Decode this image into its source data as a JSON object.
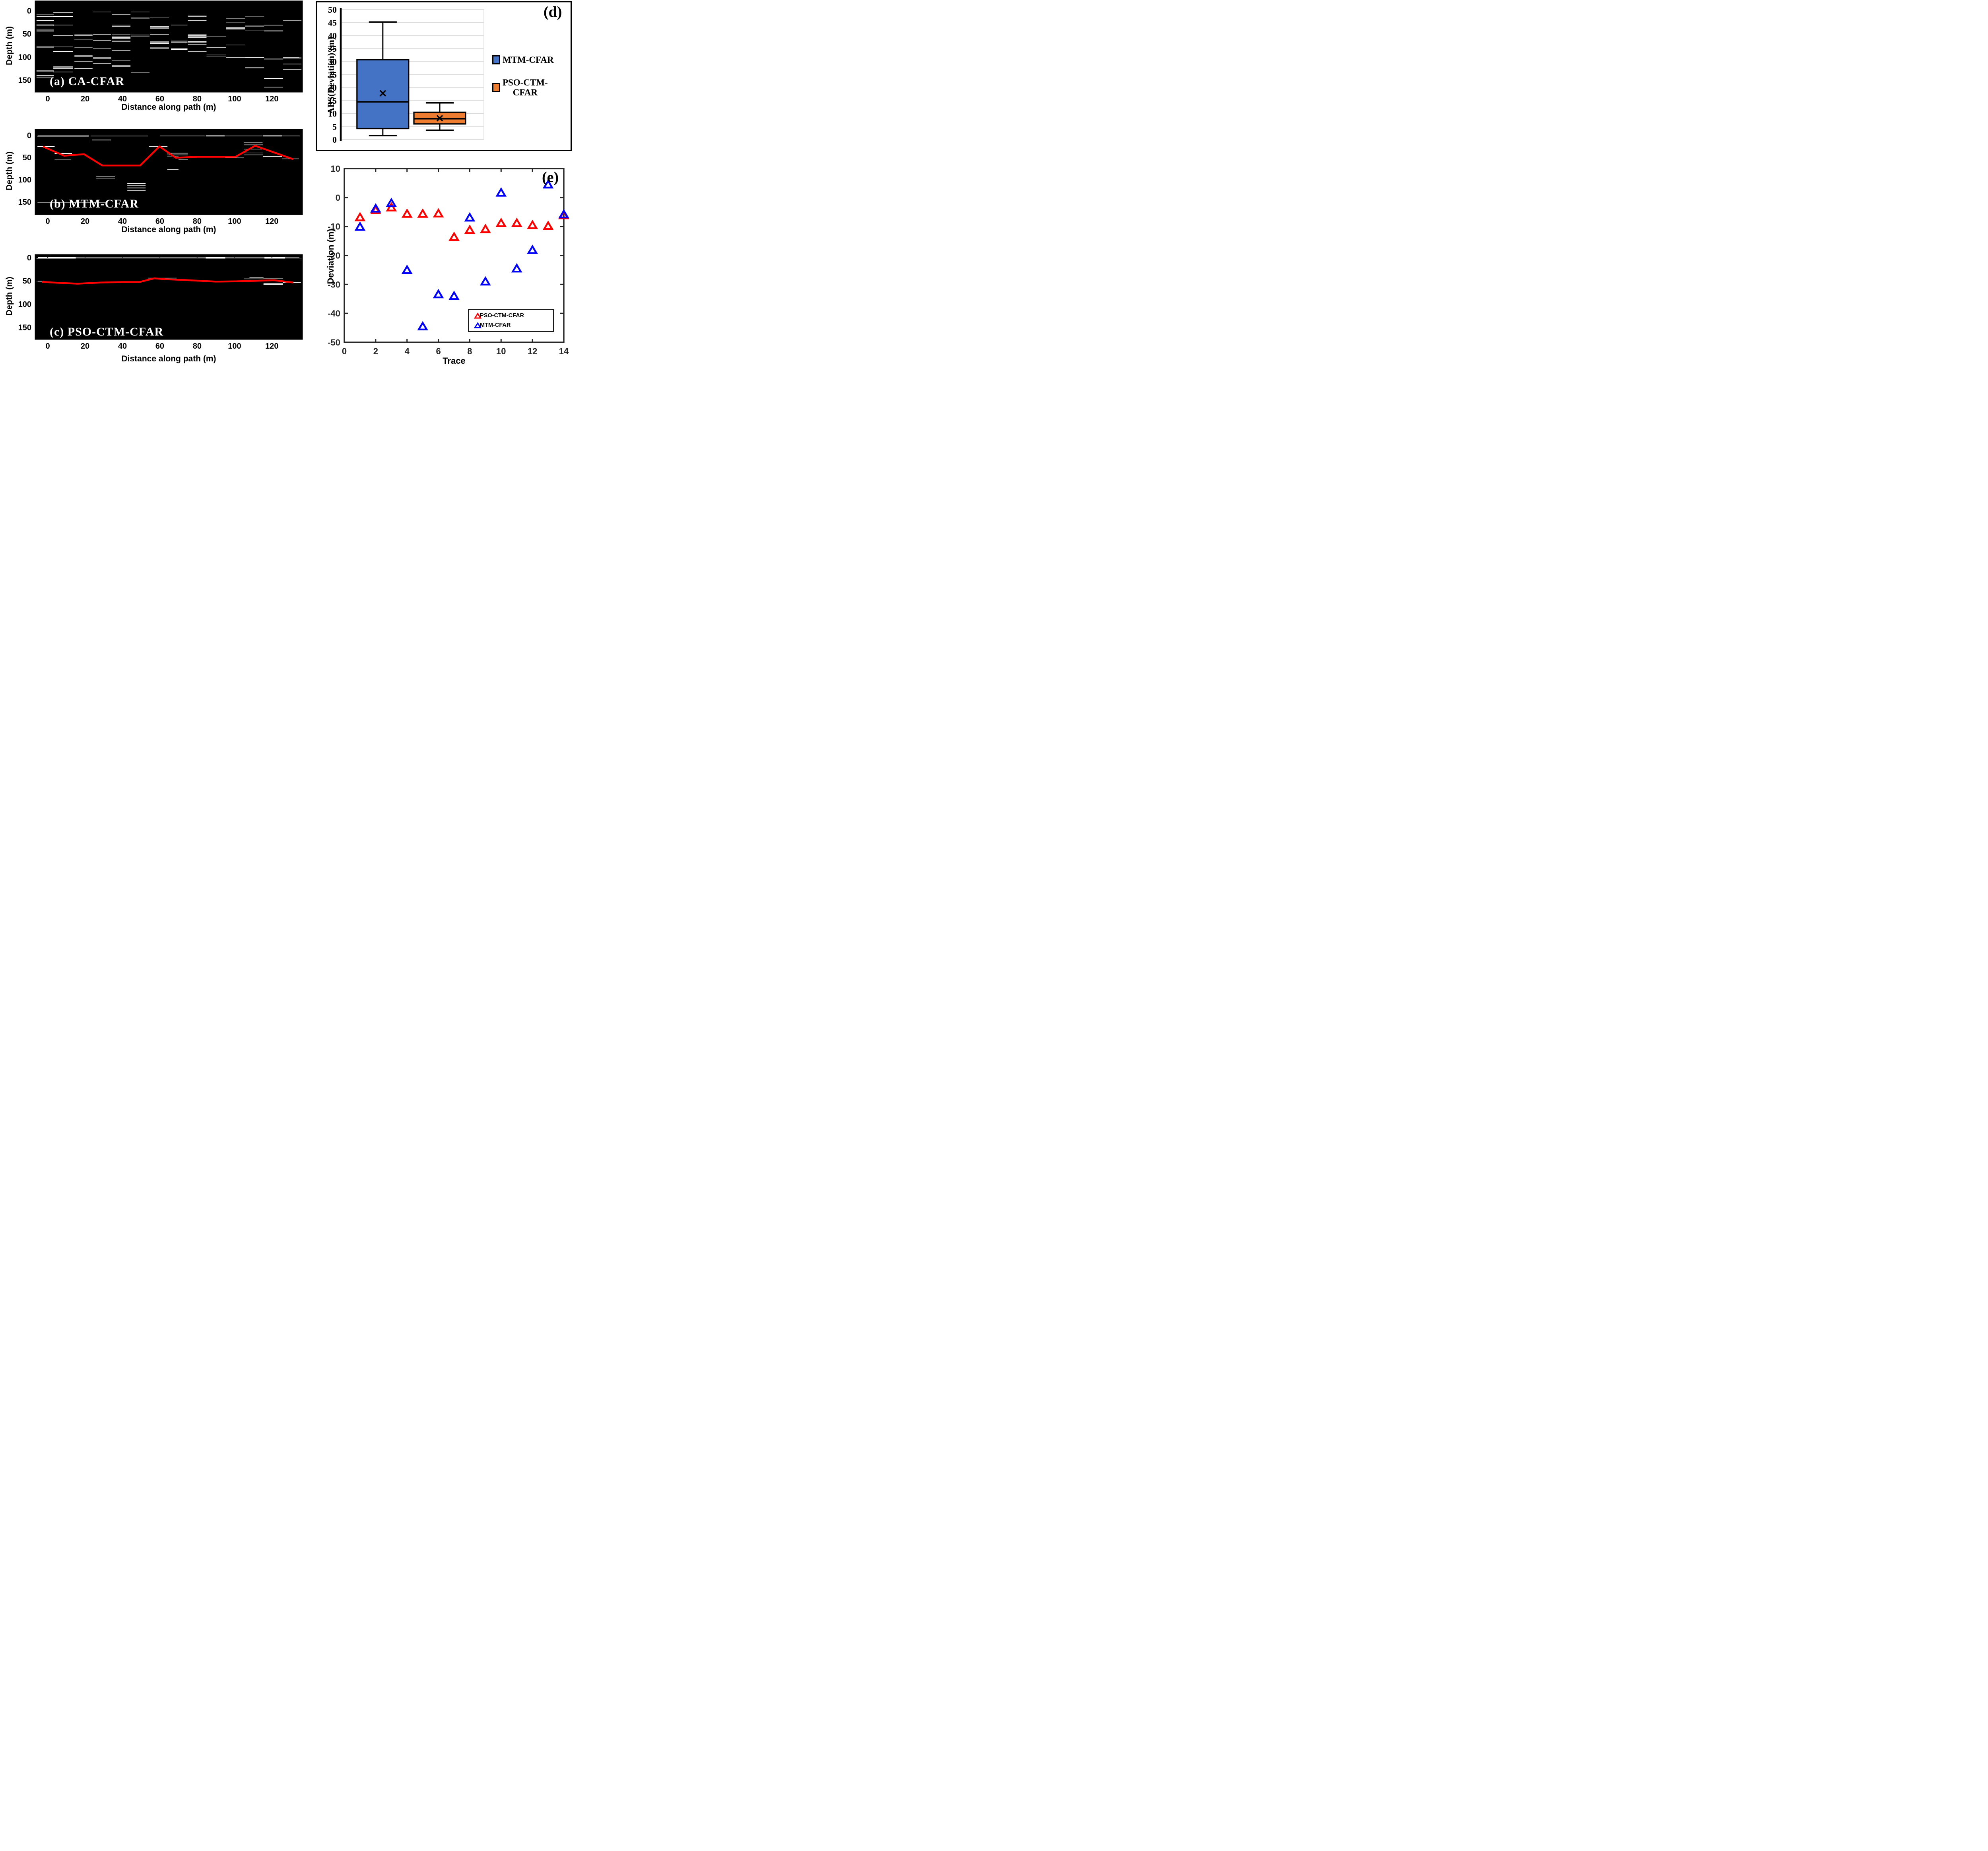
{
  "labels": {
    "depth_label": "Depth (m)",
    "distance_label": "Distance along path (m)"
  },
  "colors": {
    "mtm_blue": "#4472C4",
    "pso_orange": "#ED7D31",
    "pick_red": "#FF0000",
    "scatter_red": "#FF0000",
    "scatter_blue": "#0000FF",
    "axis_dark": "#262626",
    "grid_gray": "#DCDCDC",
    "radar_bg": "#000000",
    "detection_white": "#FFFFFF"
  },
  "chart_data": [
    {
      "id": "a",
      "type": "heatmap",
      "title": "(a) CA-CFAR",
      "xlabel": "Distance along path (m)",
      "ylabel": "Depth (m)",
      "xlim": [
        -6.6,
        136.2
      ],
      "ylim": [
        -20.4,
        175.1
      ],
      "xticks": [
        0,
        20,
        40,
        60,
        80,
        100,
        120
      ],
      "yticks": [
        0,
        50,
        100,
        150
      ],
      "detection_clusters": [
        {
          "x": [
            -6,
            3.4
          ],
          "depths": [
            7.7,
            12.4,
            21.2,
            30.5,
            32.6,
            40,
            42,
            44,
            46,
            78,
            80,
            128.7,
            130.5,
            139.5,
            141,
            143,
            145
          ]
        },
        {
          "x": [
            3,
            13.6
          ],
          "depths": [
            4.3,
            12.7,
            31,
            54,
            78.3,
            88,
            121,
            123,
            125,
            132.4
          ]
        },
        {
          "x": [
            14.3,
            24
          ],
          "depths": [
            52,
            54,
            63,
            80,
            97,
            98.7,
            109.2,
            125
          ]
        },
        {
          "x": [
            24.3,
            34
          ],
          "depths": [
            3,
            51,
            64.5,
            81,
            100.5,
            102.3,
            104,
            113.6
          ]
        },
        {
          "x": [
            34.3,
            44.3
          ],
          "depths": [
            7.9,
            31.2,
            33.9,
            52,
            55,
            58,
            60,
            65.5,
            67,
            86,
            107,
            118.5,
            120.3
          ]
        },
        {
          "x": [
            44.5,
            54.5
          ],
          "depths": [
            3,
            15.7,
            17.5,
            52.6,
            55,
            134
          ]
        },
        {
          "x": [
            54.7,
            64.9
          ],
          "depths": [
            13.8,
            34,
            36,
            38,
            51,
            67,
            68.5,
            70.9,
            80,
            81.6
          ]
        },
        {
          "x": [
            66,
            74.8
          ],
          "depths": [
            31,
            65.5,
            67.2,
            69,
            82,
            83.8
          ]
        },
        {
          "x": [
            75,
            85
          ],
          "depths": [
            9.4,
            12.3,
            21,
            51.8,
            53.8,
            56,
            58,
            66.4,
            68.2,
            72.8,
            88.4
          ]
        },
        {
          "x": [
            85,
            95.4
          ],
          "depths": [
            55,
            79.8,
            95.7,
            98
          ]
        },
        {
          "x": [
            95.4,
            105.6
          ],
          "depths": [
            16.4,
            24.8,
            36.7,
            38.5,
            40,
            74.2,
            100.7
          ]
        },
        {
          "x": [
            105.6,
            115.8
          ],
          "depths": [
            13.2,
            33,
            34.7,
            41.9,
            101,
            121.8,
            123.5
          ]
        },
        {
          "x": [
            115.8,
            126
          ],
          "depths": [
            31.4,
            42,
            44,
            104.1,
            106,
            146.5,
            165
          ]
        },
        {
          "x": [
            126,
            135.8
          ],
          "depths": [
            21.6,
            100.7,
            102.5,
            115.1,
            126.8
          ]
        }
      ]
    },
    {
      "id": "b",
      "type": "line",
      "title": "(b) MTM-CFAR",
      "xlabel": "Distance along path (m)",
      "ylabel": "Depth (m)",
      "xlim": [
        -6.6,
        136.2
      ],
      "ylim": [
        -12.9,
        178
      ],
      "xticks": [
        0,
        20,
        40,
        60,
        80,
        100,
        120
      ],
      "yticks": [
        0,
        50,
        100,
        150
      ],
      "detections": [
        [
          -5.5,
          22,
          1.5,
          2.5
        ],
        [
          23,
          53.8,
          1.6,
          1.2
        ],
        [
          60,
          84,
          1.4,
          1.2
        ],
        [
          84.6,
          94.7,
          1.3,
          2.5
        ],
        [
          95,
          115,
          1.4,
          1.2
        ],
        [
          115.3,
          125.4,
          1.3,
          2.5
        ],
        [
          125.6,
          135,
          1.4,
          1.2
        ],
        [
          -5.5,
          3.7,
          25.5,
          2
        ],
        [
          23.8,
          34,
          10.4,
          1.2
        ],
        [
          23.8,
          34,
          12.6,
          1.2
        ],
        [
          3.7,
          13,
          41,
          2
        ],
        [
          3.7,
          12.6,
          55.4,
          1.4
        ],
        [
          54.1,
          64.1,
          25.6,
          1.6
        ],
        [
          64,
          75,
          40.3,
          1.4
        ],
        [
          64,
          75,
          44.1,
          1.4
        ],
        [
          64,
          70,
          47,
          1.2
        ],
        [
          64,
          70,
          77,
          1.2
        ],
        [
          70,
          75,
          54,
          1.2
        ],
        [
          26,
          36,
          93.5,
          1.4
        ],
        [
          26,
          36,
          96.4,
          1.4
        ],
        [
          42.6,
          52.4,
          108.6,
          1.2
        ],
        [
          42.6,
          52.4,
          112.7,
          1.2
        ],
        [
          42.6,
          52.4,
          116.9,
          1.2
        ],
        [
          42.6,
          52.4,
          121,
          1.2
        ],
        [
          42.6,
          52.4,
          124.6,
          1.2
        ],
        [
          -5.5,
          32,
          151,
          1.2
        ],
        [
          104.9,
          115,
          16.8,
          1.4
        ],
        [
          104.9,
          115.3,
          21.5,
          1.4
        ],
        [
          104.9,
          115.3,
          30.8,
          1.4
        ],
        [
          104.9,
          115.3,
          39.6,
          1.2
        ],
        [
          104.9,
          115.3,
          44,
          1.2
        ],
        [
          95,
          105,
          50.9,
          1.4
        ],
        [
          115.3,
          125.4,
          47.5,
          1.2
        ],
        [
          125.4,
          134.5,
          53,
          1.2
        ]
      ],
      "picked_line": {
        "name": "MTM-CFAR picked horizon",
        "color": "#FF0000",
        "points": [
          [
            -2.5,
            25.5
          ],
          [
            8.8,
            46
          ],
          [
            19.4,
            42.5
          ],
          [
            29.2,
            68
          ],
          [
            49.5,
            68
          ],
          [
            59.8,
            25
          ],
          [
            68.5,
            50.5
          ],
          [
            80,
            48.5
          ],
          [
            100.5,
            48.5
          ],
          [
            111,
            23.5
          ],
          [
            131.5,
            54
          ]
        ]
      }
    },
    {
      "id": "c",
      "type": "line",
      "title": "(c) PSO-CTM-CFAR",
      "xlabel": "Distance along path (m)",
      "ylabel": "Depth (m)",
      "xlim": [
        -6.6,
        136.2
      ],
      "ylim": [
        -6,
        175
      ],
      "xticks": [
        0,
        20,
        40,
        60,
        80,
        100,
        120
      ],
      "yticks": [
        0,
        50,
        100,
        150
      ],
      "detections": [
        [
          -6,
          136,
          0.5,
          2
        ],
        [
          -6,
          15,
          0.5,
          3.5
        ],
        [
          84.6,
          95,
          0.5,
          3.5
        ],
        [
          116,
          127,
          0.5,
          3.5
        ],
        [
          -6,
          -2,
          50.7,
          1.4
        ],
        [
          53.6,
          69,
          44,
          1.4
        ],
        [
          84.6,
          95,
          51.5,
          1.4
        ],
        [
          105,
          115.5,
          45.6,
          1.4
        ],
        [
          108,
          115.5,
          42.5,
          1.2
        ],
        [
          115.5,
          126,
          44.2,
          1.4
        ],
        [
          115.5,
          126,
          55.5,
          1.4
        ],
        [
          115.5,
          126,
          57.7,
          1.2
        ],
        [
          126,
          135.5,
          53.4,
          1.2
        ]
      ],
      "picked_line": {
        "name": "PSO-CTM-CFAR picked horizon",
        "color": "#FF0000",
        "points": [
          [
            -3,
            52
          ],
          [
            5,
            54
          ],
          [
            16,
            56
          ],
          [
            28,
            53.5
          ],
          [
            40,
            52.5
          ],
          [
            49,
            52.5
          ],
          [
            57,
            44.5
          ],
          [
            63,
            46.5
          ],
          [
            70,
            47.5
          ],
          [
            90,
            51.5
          ],
          [
            100,
            51
          ],
          [
            110,
            50
          ],
          [
            121,
            48.5
          ],
          [
            131.5,
            53.5
          ]
        ]
      }
    },
    {
      "id": "d",
      "type": "box",
      "corner_label": "(d)",
      "ylabel": "ABS(Deviation) (m)",
      "ylim": [
        0,
        50
      ],
      "ytick_step": 5,
      "yticks": [
        0,
        5,
        10,
        15,
        20,
        25,
        30,
        35,
        40,
        45,
        50
      ],
      "grid": true,
      "series": [
        {
          "name": "MTM-CFAR",
          "color": "#4472C4",
          "min": 1.5,
          "q1": 4.2,
          "median": 14.5,
          "q3": 30.7,
          "max": 45.2,
          "mean": 17.8
        },
        {
          "name": "PSO-CTM-CFAR",
          "color": "#ED7D31",
          "min": 3.6,
          "q1": 6.0,
          "median": 8.0,
          "q3": 10.5,
          "max": 14.1,
          "mean": 8.2
        }
      ],
      "legend": [
        {
          "label": "MTM-CFAR",
          "display_lines": [
            "MTM-CFAR"
          ],
          "color": "#4472C4"
        },
        {
          "label": "PSO-CTM-CFAR",
          "display_lines": [
            "PSO-CTM-",
            "CFAR"
          ],
          "color": "#ED7D31"
        }
      ],
      "legend_position": "right"
    },
    {
      "id": "e",
      "type": "scatter",
      "corner_label": "(e)",
      "xlabel": "Trace",
      "ylabel": "Deviation (m)",
      "xlim": [
        0,
        14
      ],
      "ylim": [
        -50,
        10
      ],
      "xticks": [
        0,
        2,
        4,
        6,
        8,
        10,
        12,
        14
      ],
      "yticks": [
        -50,
        -40,
        -30,
        -20,
        -10,
        0,
        10
      ],
      "x": [
        1,
        2,
        3,
        4,
        5,
        6,
        7,
        8,
        9,
        10,
        11,
        12,
        13,
        14
      ],
      "series": [
        {
          "name": "PSO-CTM-CFAR",
          "color": "#FF0000",
          "marker": "triangle-up-open",
          "values": [
            -7.0,
            -4.6,
            -3.6,
            -5.8,
            -5.8,
            -5.7,
            -13.8,
            -11.4,
            -11.1,
            -9.0,
            -9.0,
            -9.7,
            -10.0,
            -6.3
          ]
        },
        {
          "name": "MTM-CFAR",
          "color": "#0000FF",
          "marker": "triangle-up-open",
          "values": [
            -10.3,
            -4.0,
            -2.1,
            -25.2,
            -44.7,
            -33.6,
            -34.2,
            -7.1,
            -29.2,
            1.5,
            -24.7,
            -18.3,
            4.3,
            -6.0
          ]
        }
      ],
      "legend": [
        {
          "label": "PSO-CTM-CFAR",
          "color": "#FF0000"
        },
        {
          "label": "MTM-CFAR",
          "color": "#0000FF"
        }
      ],
      "legend_position": "lower right"
    }
  ]
}
